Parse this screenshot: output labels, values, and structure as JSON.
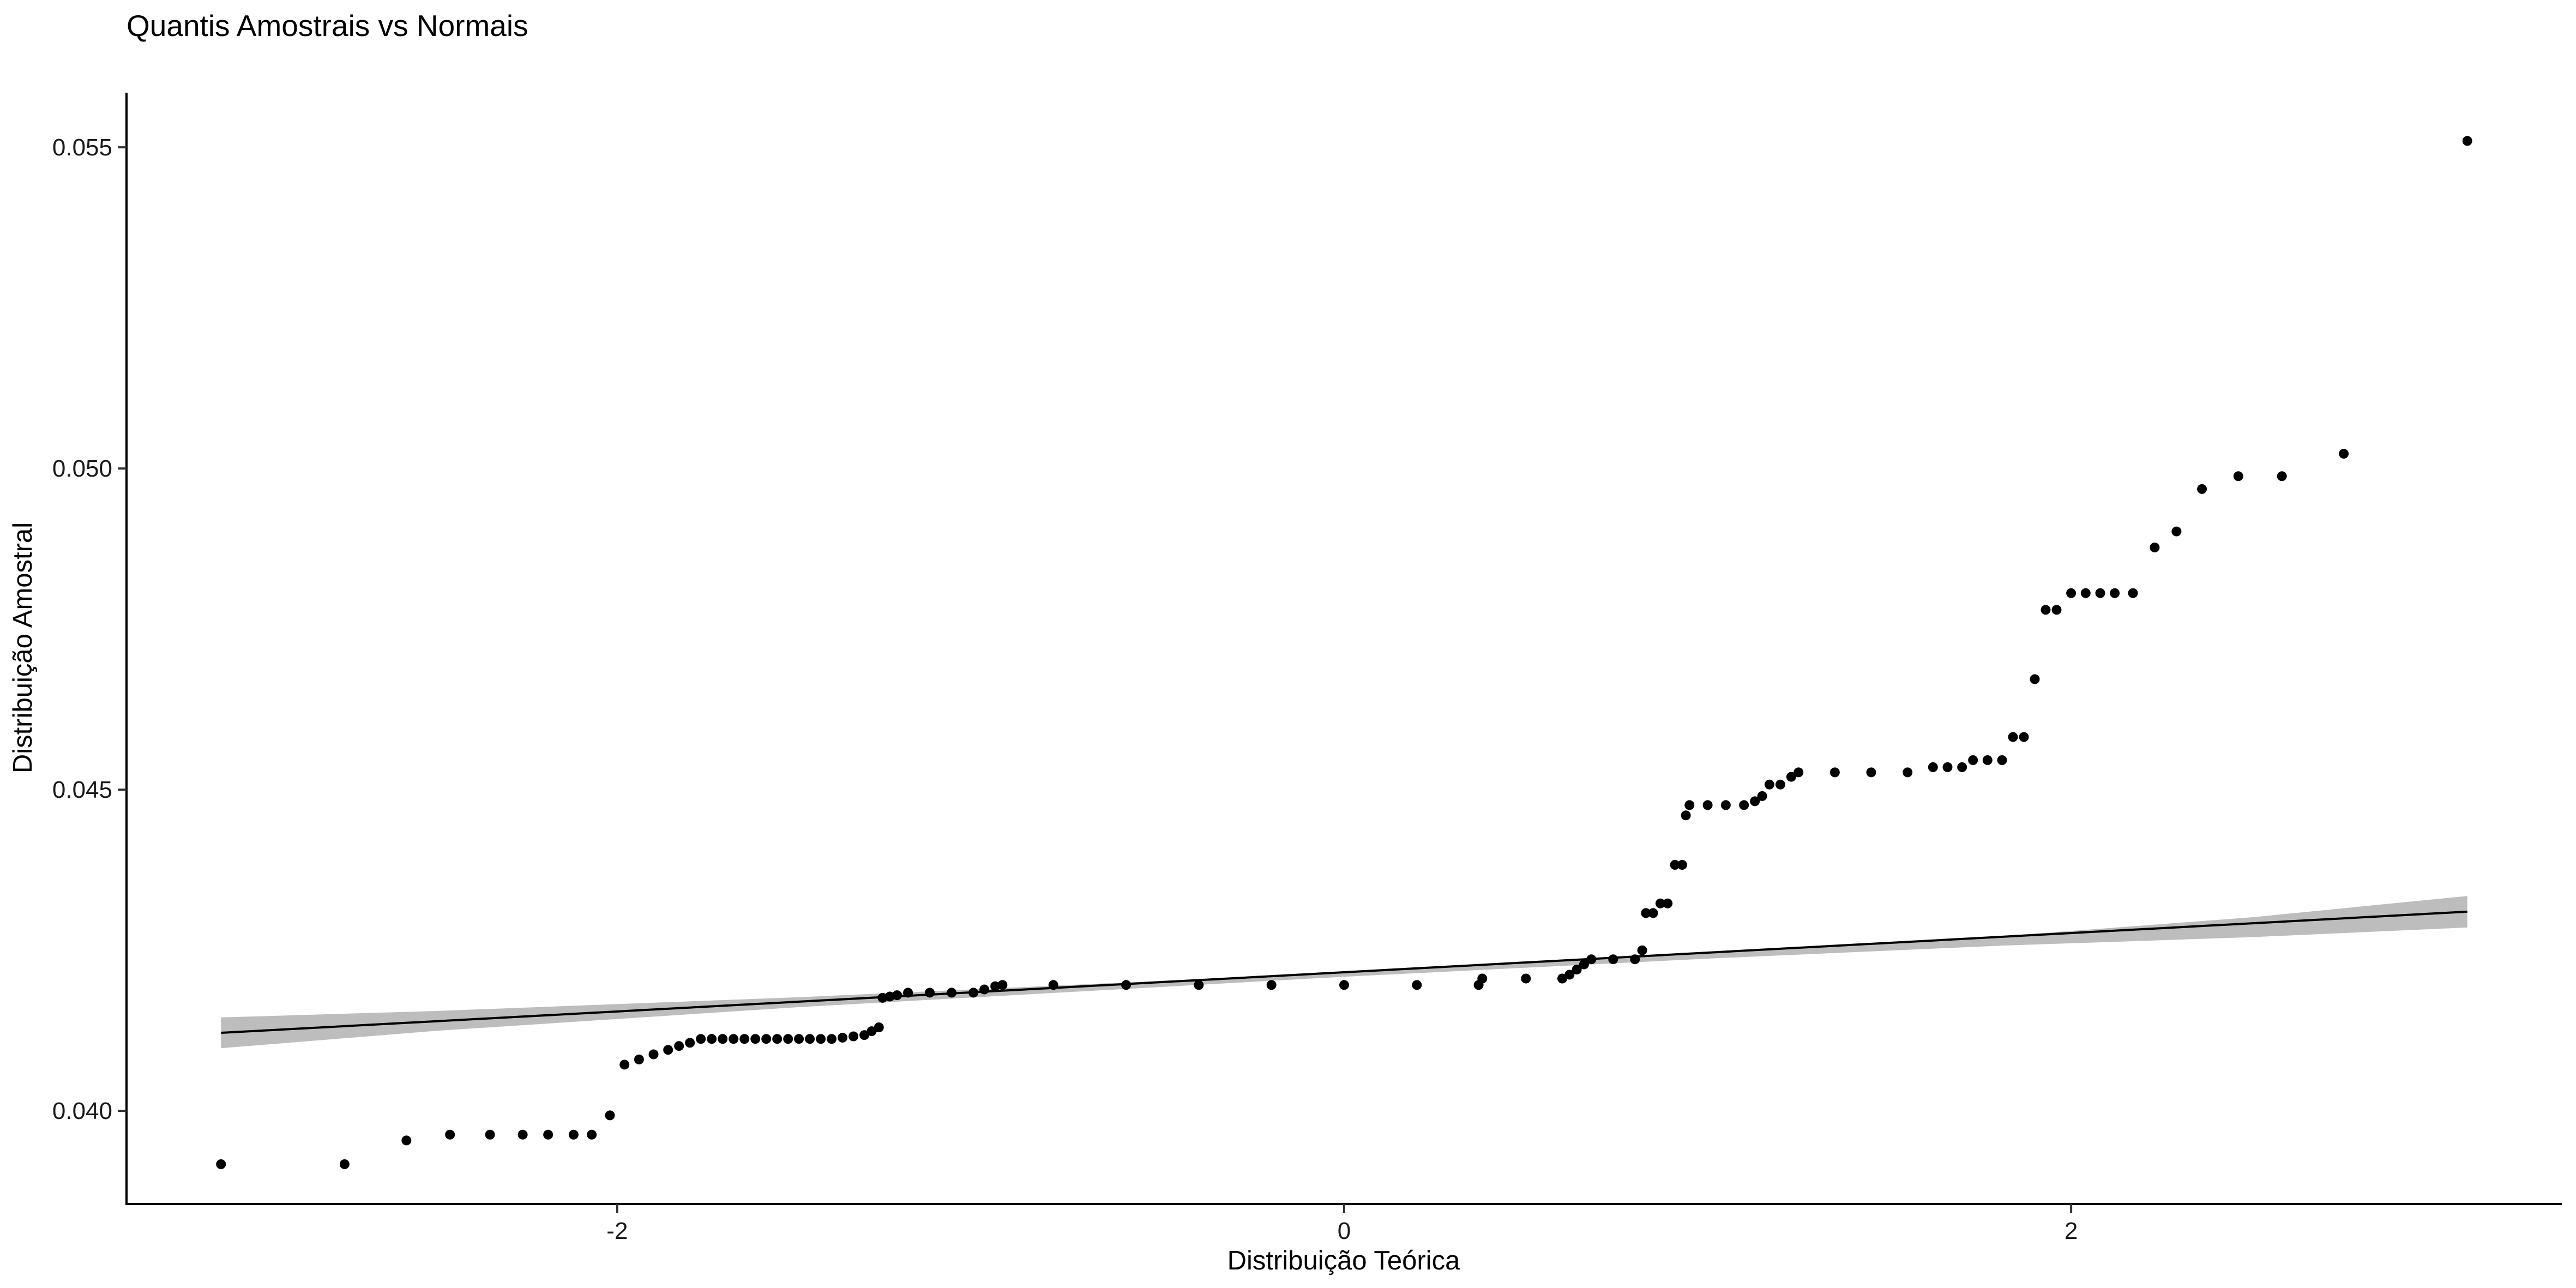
{
  "chart_data": {
    "type": "scatter",
    "title": "Quantis Amostrais vs Normais",
    "xlabel": "Distribuição Teórica",
    "ylabel": "Distribuição Amostral",
    "xlim": [
      -3.35,
      3.35
    ],
    "ylim": [
      0.03855,
      0.05585
    ],
    "x_ticks": [
      -2,
      0,
      2
    ],
    "x_tick_labels": [
      "-2",
      "0",
      "2"
    ],
    "y_ticks": [
      0.04,
      0.045,
      0.05,
      0.055
    ],
    "y_tick_labels": [
      "0.040",
      "0.045",
      "0.050",
      "0.055"
    ],
    "grid": false,
    "point_color": "#000000",
    "line_color": "#000000",
    "band_color": "#bdbdbd",
    "points": [
      [
        -3.09,
        0.03917
      ],
      [
        -2.75,
        0.03917
      ],
      [
        -2.58,
        0.03954
      ],
      [
        -2.46,
        0.03963
      ],
      [
        -2.35,
        0.03963
      ],
      [
        -2.26,
        0.03963
      ],
      [
        -2.19,
        0.03963
      ],
      [
        -2.12,
        0.03963
      ],
      [
        -2.07,
        0.03963
      ],
      [
        -2.02,
        0.03993
      ],
      [
        -1.98,
        0.04072
      ],
      [
        -1.94,
        0.0408
      ],
      [
        -1.9,
        0.04088
      ],
      [
        -1.86,
        0.04095
      ],
      [
        -1.83,
        0.04101
      ],
      [
        -1.8,
        0.04106
      ],
      [
        -1.77,
        0.04112
      ],
      [
        -1.74,
        0.04112
      ],
      [
        -1.71,
        0.04112
      ],
      [
        -1.68,
        0.04112
      ],
      [
        -1.65,
        0.04112
      ],
      [
        -1.62,
        0.04112
      ],
      [
        -1.59,
        0.04112
      ],
      [
        -1.56,
        0.04112
      ],
      [
        -1.53,
        0.04112
      ],
      [
        -1.5,
        0.04112
      ],
      [
        -1.47,
        0.04112
      ],
      [
        -1.44,
        0.04112
      ],
      [
        -1.41,
        0.04112
      ],
      [
        -1.38,
        0.04114
      ],
      [
        -1.35,
        0.04116
      ],
      [
        -1.32,
        0.04118
      ],
      [
        -1.3,
        0.04124
      ],
      [
        -1.28,
        0.0413
      ],
      [
        -1.27,
        0.04176
      ],
      [
        -1.25,
        0.04178
      ],
      [
        -1.23,
        0.0418
      ],
      [
        -1.2,
        0.04184
      ],
      [
        -1.14,
        0.04184
      ],
      [
        -1.08,
        0.04184
      ],
      [
        -1.02,
        0.04184
      ],
      [
        -0.99,
        0.04189
      ],
      [
        -0.96,
        0.04194
      ],
      [
        -0.94,
        0.04196
      ],
      [
        -0.8,
        0.04196
      ],
      [
        -0.6,
        0.04196
      ],
      [
        -0.4,
        0.04196
      ],
      [
        -0.2,
        0.04196
      ],
      [
        0.0,
        0.04196
      ],
      [
        0.2,
        0.04196
      ],
      [
        0.37,
        0.04196
      ],
      [
        0.38,
        0.04206
      ],
      [
        0.5,
        0.04206
      ],
      [
        0.6,
        0.04206
      ],
      [
        0.62,
        0.04212
      ],
      [
        0.64,
        0.0422
      ],
      [
        0.66,
        0.04228
      ],
      [
        0.68,
        0.04236
      ],
      [
        0.74,
        0.04236
      ],
      [
        0.8,
        0.04236
      ],
      [
        0.82,
        0.0425
      ],
      [
        0.83,
        0.04308
      ],
      [
        0.85,
        0.04308
      ],
      [
        0.87,
        0.04323
      ],
      [
        0.89,
        0.04323
      ],
      [
        0.91,
        0.04383
      ],
      [
        0.93,
        0.04383
      ],
      [
        0.94,
        0.0446
      ],
      [
        0.95,
        0.04476
      ],
      [
        1.0,
        0.04476
      ],
      [
        1.05,
        0.04476
      ],
      [
        1.1,
        0.04476
      ],
      [
        1.13,
        0.04482
      ],
      [
        1.15,
        0.0449
      ],
      [
        1.17,
        0.04508
      ],
      [
        1.2,
        0.04508
      ],
      [
        1.23,
        0.0452
      ],
      [
        1.25,
        0.04527
      ],
      [
        1.35,
        0.04527
      ],
      [
        1.45,
        0.04527
      ],
      [
        1.55,
        0.04527
      ],
      [
        1.62,
        0.04535
      ],
      [
        1.66,
        0.04535
      ],
      [
        1.7,
        0.04535
      ],
      [
        1.73,
        0.04546
      ],
      [
        1.77,
        0.04546
      ],
      [
        1.81,
        0.04546
      ],
      [
        1.84,
        0.04582
      ],
      [
        1.87,
        0.04582
      ],
      [
        1.9,
        0.04672
      ],
      [
        1.93,
        0.0478
      ],
      [
        1.96,
        0.0478
      ],
      [
        2.0,
        0.04806
      ],
      [
        2.04,
        0.04806
      ],
      [
        2.08,
        0.04806
      ],
      [
        2.12,
        0.04806
      ],
      [
        2.17,
        0.04806
      ],
      [
        2.23,
        0.04877
      ],
      [
        2.29,
        0.04902
      ],
      [
        2.36,
        0.04968
      ],
      [
        2.46,
        0.04988
      ],
      [
        2.58,
        0.04988
      ],
      [
        2.75,
        0.05023
      ],
      [
        3.09,
        0.0551
      ]
    ],
    "reference_line": {
      "x": [
        -3.09,
        3.09
      ],
      "y": [
        0.041215,
        0.043101
      ]
    },
    "confidence_band": {
      "x": [
        -3.09,
        -2.5,
        -1.5,
        0.0,
        1.0,
        1.8,
        2.5,
        3.09
      ],
      "lower": [
        0.040975,
        0.041245,
        0.041615,
        0.042088,
        0.04237,
        0.04257,
        0.042705,
        0.042855
      ],
      "upper": [
        0.041455,
        0.041555,
        0.04177,
        0.042152,
        0.04246,
        0.042715,
        0.043015,
        0.043345
      ]
    }
  }
}
